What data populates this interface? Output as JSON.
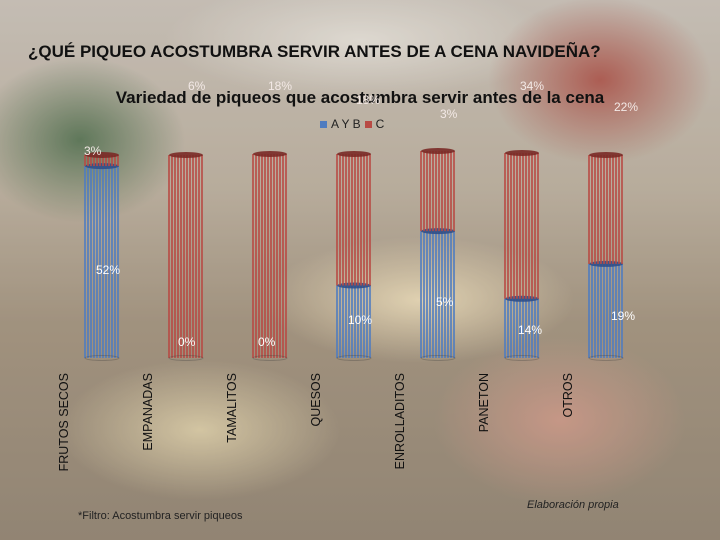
{
  "chart_data": {
    "type": "bar",
    "title": "¿QUÉ PIQUEO ACOSTUMBRA SERVIR ANTES DE A CENA NAVIDEÑA?",
    "subtitle": "Variedad de piqueos que acostumbra servir antes de la cena",
    "categories": [
      "FRUTOS SECOS",
      "EMPANADAS",
      "TAMALITOS",
      "QUESOS",
      "ENROLLADITOS",
      "PANETON",
      "OTROS"
    ],
    "series": [
      {
        "name": "A Y B",
        "color": "#4f7cc0",
        "values": [
          52,
          0,
          0,
          10,
          5,
          14,
          19
        ]
      },
      {
        "name": "C",
        "color": "#b84a44",
        "values": [
          3,
          6,
          18,
          18,
          3,
          34,
          22
        ]
      }
    ],
    "series_top_labels": [
      "3%",
      "6%",
      "18%",
      "18%",
      "3%",
      "34%",
      "22%"
    ],
    "series_bottom_labels": [
      "52%",
      "0%",
      "0%",
      "10%",
      "5%",
      "14%",
      "19%"
    ],
    "footnote": "*Filtro: Acostumbra servir piqueos",
    "credit": "Elaboración propia"
  }
}
